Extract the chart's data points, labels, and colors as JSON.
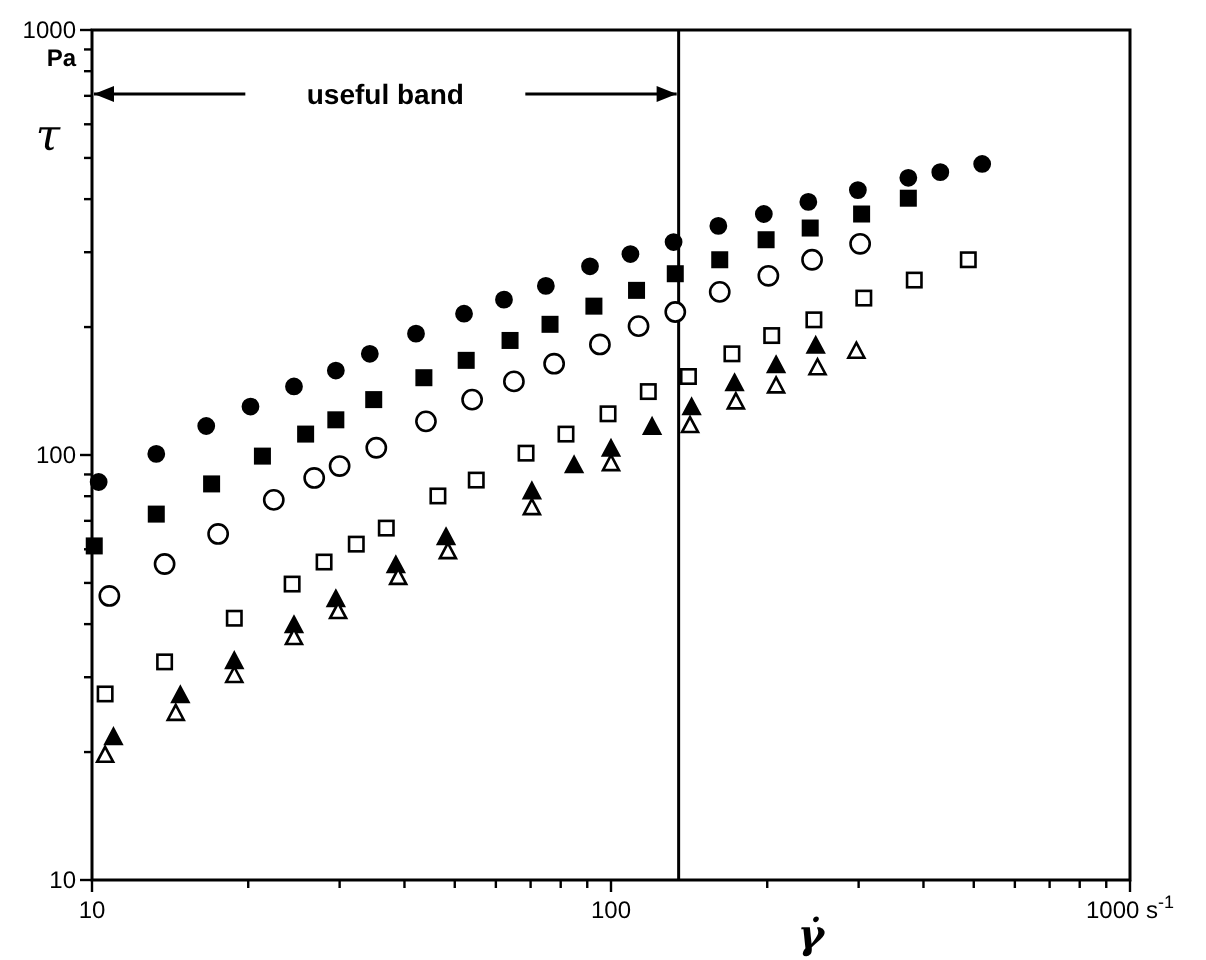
{
  "chart_data": {
    "type": "scatter",
    "xlabel": "γ̇",
    "ylabel": "τ",
    "log": "xy",
    "grid": false,
    "xlim": [
      10,
      1000
    ],
    "ylim": [
      10,
      1000
    ],
    "xticks": [
      10,
      {
        "value": 20,
        "label": null
      },
      {
        "value": 30,
        "label": null
      },
      {
        "value": 40,
        "label": null
      },
      {
        "value": 50,
        "label": null
      },
      {
        "value": 60,
        "label": null
      },
      {
        "value": 70,
        "label": null
      },
      {
        "value": 80,
        "label": null
      },
      {
        "value": 90,
        "label": null
      },
      100,
      {
        "value": 200,
        "label": null
      },
      {
        "value": 300,
        "label": null
      },
      {
        "value": 400,
        "label": null
      },
      {
        "value": 500,
        "label": null
      },
      {
        "value": 600,
        "label": null
      },
      {
        "value": 700,
        "label": null
      },
      {
        "value": 800,
        "label": null
      },
      {
        "value": 900,
        "label": null
      },
      {
        "value": 1000,
        "label": "1000 s$^{-1}$"
      }
    ],
    "yticks": [
      10,
      {
        "value": 20,
        "label": null
      },
      {
        "value": 30,
        "label": null
      },
      {
        "value": 40,
        "label": null
      },
      {
        "value": 50,
        "label": null
      },
      {
        "value": 60,
        "label": null
      },
      {
        "value": 70,
        "label": null
      },
      {
        "value": 80,
        "label": null
      },
      {
        "value": 90,
        "label": null
      },
      100,
      {
        "value": 200,
        "label": null
      },
      {
        "value": 300,
        "label": null
      },
      {
        "value": 400,
        "label": null
      },
      {
        "value": 500,
        "label": null
      },
      {
        "value": 600,
        "label": null
      },
      {
        "value": 700,
        "label": null
      },
      {
        "value": 800,
        "label": null
      },
      {
        "value": 900,
        "label": null
      },
      1000
    ],
    "ref_lines": [
      {
        "axis": "x",
        "value": 135,
        "color": "#000000"
      }
    ],
    "annotations": [
      "Pa",
      "useful band"
    ],
    "series": [
      {
        "marker": "circle",
        "color": "#000000",
        "x": [
          10.3,
          13.3,
          16.6,
          20.2,
          24.5,
          29.5,
          34.3,
          42.1,
          52.1,
          62.2,
          74.9,
          91.1,
          109,
          132,
          161,
          197,
          240,
          299,
          374,
          431,
          519
        ],
        "values": [
          86.4,
          100.6,
          117,
          130,
          145,
          158,
          173,
          193,
          215,
          232,
          250,
          278,
          297,
          317,
          346,
          369,
          394,
          420,
          449,
          463,
          484
        ]
      },
      {
        "marker": "square",
        "color": "#000000",
        "x": [
          10.1,
          13.3,
          17.0,
          21.3,
          25.8,
          29.5,
          34.9,
          43.6,
          52.6,
          63.9,
          76.3,
          92.7,
          112,
          133,
          162,
          199,
          242,
          304,
          374
        ],
        "values": [
          61.1,
          72.6,
          85.5,
          99.4,
          112,
          121,
          135,
          152,
          167,
          186,
          203,
          224,
          244,
          267,
          288,
          321,
          342,
          369,
          402
        ]
      },
      {
        "marker": "circle",
        "color": "#ffffff",
        "x": [
          10.8,
          13.8,
          17.5,
          22.4,
          26.8,
          30.0,
          35.3,
          44.0,
          54.0,
          65.0,
          77.7,
          95.2,
          113,
          133,
          162,
          201,
          244,
          302
        ],
        "values": [
          46.6,
          55.4,
          65.2,
          78.4,
          88.3,
          94.2,
          104,
          120,
          135,
          149,
          164,
          182,
          201,
          217,
          242,
          264,
          288,
          314
        ]
      },
      {
        "marker": "square",
        "color": "#ffffff",
        "x": [
          10.6,
          13.8,
          18.8,
          24.3,
          28.0,
          32.3,
          36.9,
          46.4,
          55.0,
          68.6,
          81.9,
          98.7,
          118,
          141,
          171,
          204,
          246,
          307,
          384,
          488
        ],
        "values": [
          27.4,
          32.6,
          41.3,
          49.7,
          56.0,
          61.7,
          67.3,
          80.1,
          87.3,
          101,
          112,
          125,
          141,
          153,
          173,
          191,
          208,
          234,
          258,
          288
        ]
      },
      {
        "marker": "triangle",
        "color": "#000000",
        "x": [
          11.0,
          14.8,
          18.8,
          24.5,
          29.5,
          38.5,
          48.1,
          70.4,
          84.9,
          100,
          120,
          143,
          173,
          208,
          248
        ],
        "values": [
          21.6,
          27.1,
          32.6,
          39.6,
          45.6,
          54.8,
          63.8,
          81.8,
          94.2,
          103,
          116,
          129,
          147,
          162,
          180
        ]
      },
      {
        "marker": "triangle",
        "color": "#ffffff",
        "x": [
          10.6,
          14.5,
          18.8,
          24.5,
          29.8,
          38.9,
          48.5,
          70.4,
          100,
          142,
          174,
          208,
          250,
          297
        ],
        "values": [
          19.6,
          24.6,
          30.2,
          37.1,
          42.7,
          51.4,
          59.1,
          75.0,
          95.2,
          117,
          133,
          145,
          160,
          175
        ]
      }
    ]
  }
}
